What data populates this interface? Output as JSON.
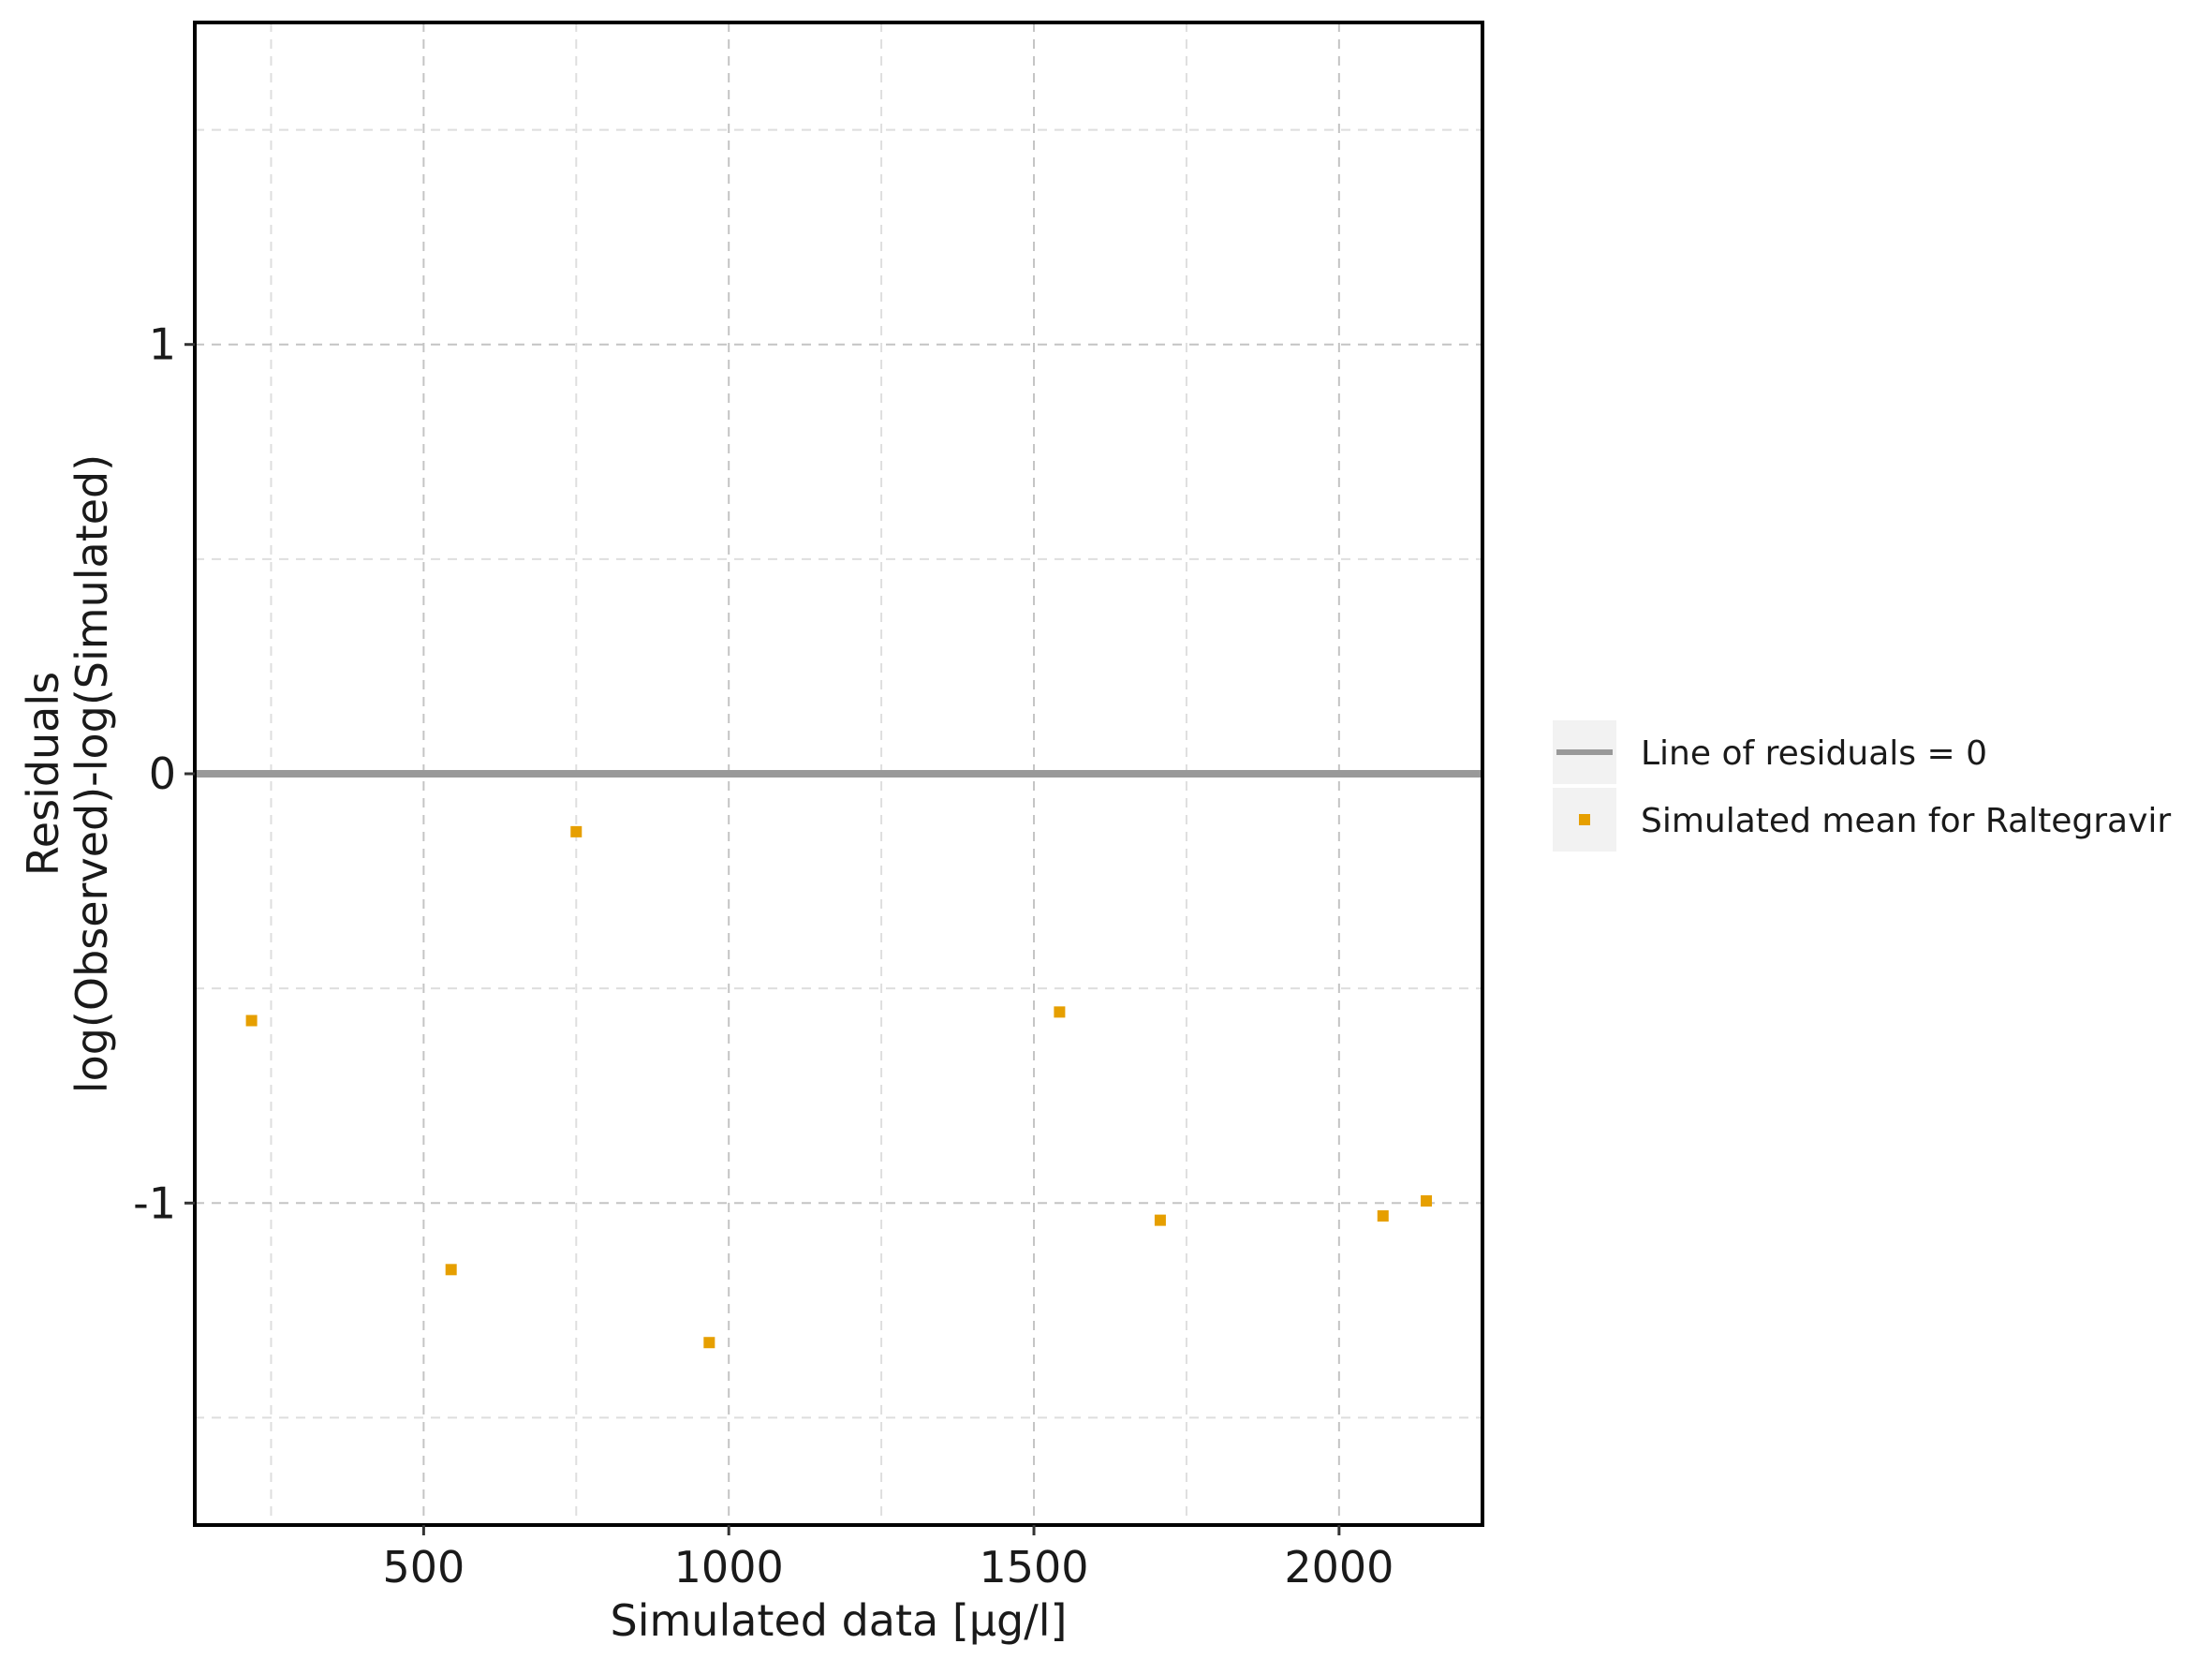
{
  "chart_data": {
    "type": "scatter",
    "xlabel": "Simulated data [µg/l]",
    "ylabel_lines": [
      "Residuals",
      "log(Observed)-log(Simulated)"
    ],
    "xlim": [
      125,
      2235
    ],
    "ylim": [
      -1.75,
      1.75
    ],
    "x_ticks_major": [
      500,
      1000,
      1500,
      2000
    ],
    "x_ticks_minor": [
      250,
      750,
      1250,
      1750
    ],
    "y_ticks_major": [
      -1,
      0,
      1
    ],
    "y_ticks_minor": [
      -1.5,
      -0.5,
      0.5,
      1.5
    ],
    "grid": true,
    "legend_position": "right",
    "reference_line": {
      "name": "Line of residuals = 0",
      "y": 0,
      "color": "#999999"
    },
    "series": [
      {
        "name": "Simulated mean for Raltegravir",
        "color": "#E69F00",
        "points": [
          {
            "x": 218,
            "y": -0.575
          },
          {
            "x": 545,
            "y": -1.155
          },
          {
            "x": 750,
            "y": -0.135
          },
          {
            "x": 968,
            "y": -1.325
          },
          {
            "x": 1542,
            "y": -0.555
          },
          {
            "x": 1707,
            "y": -1.04
          },
          {
            "x": 2072,
            "y": -1.03
          },
          {
            "x": 2143,
            "y": -0.995
          }
        ]
      }
    ]
  }
}
